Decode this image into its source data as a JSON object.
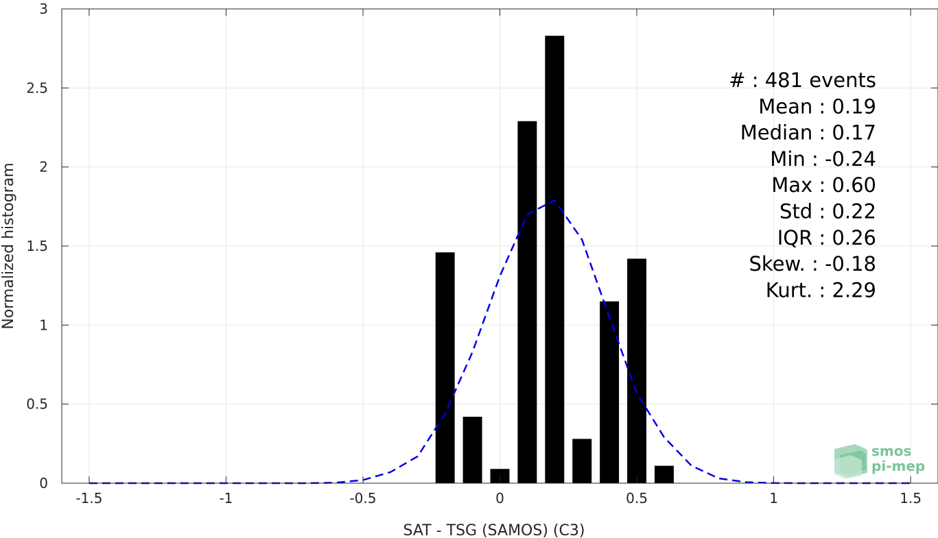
{
  "chart_data": {
    "type": "bar",
    "xlabel": "SAT - TSG (SAMOS) (C3)",
    "ylabel": "Normalized histogram",
    "xlim": [
      -1.6,
      1.6
    ],
    "ylim": [
      0,
      3
    ],
    "xticks": [
      -1.5,
      -1,
      -0.5,
      0,
      0.5,
      1,
      1.5
    ],
    "xtick_labels": [
      "-1.5",
      "-1",
      "-0.5",
      "0",
      "0.5",
      "1",
      "1.5"
    ],
    "yticks": [
      0,
      0.5,
      1,
      1.5,
      2,
      2.5,
      3
    ],
    "ytick_labels": [
      "0",
      "0.5",
      "1",
      "1.5",
      "2",
      "2.5",
      "3"
    ],
    "grid": true,
    "bin_width": 0.07,
    "bars": [
      {
        "x": -0.2,
        "value": 1.46
      },
      {
        "x": -0.1,
        "value": 0.42
      },
      {
        "x": 0.0,
        "value": 0.09
      },
      {
        "x": 0.1,
        "value": 2.29
      },
      {
        "x": 0.2,
        "value": 2.83
      },
      {
        "x": 0.3,
        "value": 0.28
      },
      {
        "x": 0.4,
        "value": 1.15
      },
      {
        "x": 0.5,
        "value": 1.42
      },
      {
        "x": 0.6,
        "value": 0.11
      }
    ],
    "bar_color": "#000000",
    "fit_curve": {
      "style": "dashed",
      "color": "#0000e6",
      "x": [
        -1.5,
        -1.4,
        -1.3,
        -1.2,
        -1.1,
        -1.0,
        -0.9,
        -0.8,
        -0.7,
        -0.6,
        -0.5,
        -0.4,
        -0.3,
        -0.2,
        -0.1,
        0.0,
        0.1,
        0.2,
        0.3,
        0.4,
        0.5,
        0.6,
        0.7,
        0.8,
        0.9,
        1.0,
        1.1,
        1.2,
        1.3,
        1.4,
        1.5
      ],
      "y": [
        0,
        0,
        0,
        0,
        0,
        0,
        0,
        0,
        0,
        0.003,
        0.02,
        0.07,
        0.17,
        0.44,
        0.83,
        1.31,
        1.7,
        1.79,
        1.54,
        1.05,
        0.57,
        0.29,
        0.11,
        0.03,
        0.006,
        0.001,
        0,
        0,
        0,
        0,
        0
      ]
    },
    "annotations": [
      {
        "key": "#",
        "sep": " : ",
        "value": "481 events"
      },
      {
        "key": "Mean",
        "sep": " : ",
        "value": "0.19"
      },
      {
        "key": "Median",
        "sep": " : ",
        "value": "0.17"
      },
      {
        "key": "Min",
        "sep": " : ",
        "value": "-0.24"
      },
      {
        "key": "Max",
        "sep": " : ",
        "value": "0.60"
      },
      {
        "key": "Std",
        "sep": " : ",
        "value": "0.22"
      },
      {
        "key": "IQR",
        "sep": " : ",
        "value": "0.26"
      },
      {
        "key": "Skew.",
        "sep": " : ",
        "value": "-0.18"
      },
      {
        "key": "Kurt.",
        "sep": " : ",
        "value": "2.29"
      }
    ]
  },
  "logo": {
    "line1": "smos",
    "line2": "pi-mep",
    "color": "#7cc39a"
  },
  "colors": {
    "axis": "#262626",
    "grid": "#e6e6e6"
  }
}
